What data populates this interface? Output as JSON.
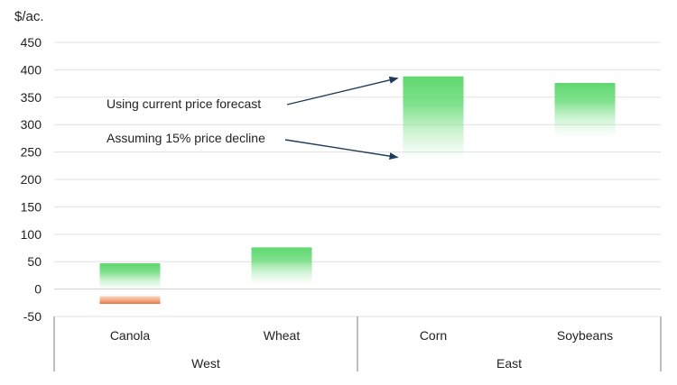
{
  "chart_data": {
    "type": "bar",
    "subtype": "floating-range",
    "ylabel": "$/ac.",
    "ylim": [
      -50,
      450
    ],
    "yticks": [
      450,
      400,
      350,
      300,
      250,
      200,
      150,
      100,
      50,
      0,
      -50
    ],
    "grid": true,
    "categories": [
      "Canola",
      "Wheat",
      "Corn",
      "Soybeans"
    ],
    "groups": [
      {
        "label": "West",
        "categories": [
          "Canola",
          "Wheat"
        ]
      },
      {
        "label": "East",
        "categories": [
          "Corn",
          "Soybeans"
        ]
      }
    ],
    "series": [
      {
        "values": [
          [
            0,
            47
          ],
          [
            10,
            76
          ],
          [
            237,
            388
          ],
          [
            280,
            376
          ]
        ]
      },
      {
        "values": [
          [
            -27,
            -13
          ],
          null,
          null,
          null
        ]
      }
    ],
    "annotations": [
      {
        "text": "Using current price forecast",
        "points_to": "Corn",
        "value": 388
      },
      {
        "text": "Assuming 15% price decline",
        "points_to": "Corn",
        "value": 237
      }
    ],
    "colors": {
      "positive": "#5fd86f",
      "negative": "#e8733f",
      "grid": "#e0e0e0",
      "arrow": "#1f3a5a",
      "axis": "#7f7f7f"
    }
  }
}
